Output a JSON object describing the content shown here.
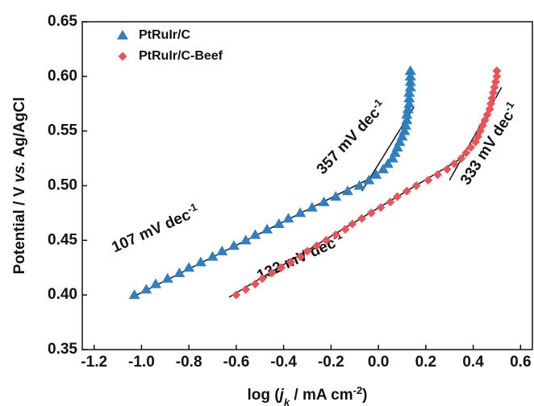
{
  "chart_data": {
    "type": "scatter",
    "x_label_parts": [
      "log (",
      "j",
      "k",
      " / mA cm",
      "-2",
      ")"
    ],
    "y_label_parts": [
      "Potential / V ",
      "vs.",
      " Ag/AgCl"
    ],
    "xlim": [
      -1.25,
      0.65
    ],
    "ylim": [
      0.35,
      0.65
    ],
    "xticks": [
      -1.2,
      {
        "value": -1.0,
        "label": "-1.0"
      },
      -0.8,
      -0.6,
      -0.4,
      -0.2,
      {
        "value": 0.0,
        "label": "0.0"
      },
      0.2,
      0.4,
      0.6
    ],
    "yticks": [
      0.35,
      {
        "value": 0.4,
        "label": "0.40"
      },
      0.45,
      {
        "value": 0.5,
        "label": "0.50"
      },
      0.55,
      {
        "value": 0.6,
        "label": "0.60"
      },
      0.65
    ],
    "legend_position": "upper left",
    "series": [
      {
        "name": "PtRuIr/C",
        "color": "#2f7fc1",
        "marker": "triangle",
        "x": [
          -1.03,
          -0.98,
          -0.94,
          -0.89,
          -0.84,
          -0.8,
          -0.75,
          -0.7,
          -0.66,
          -0.61,
          -0.56,
          -0.52,
          -0.47,
          -0.42,
          -0.38,
          -0.33,
          -0.28,
          -0.23,
          -0.18,
          -0.13,
          -0.08,
          -0.04,
          -0.01,
          0.02,
          0.04,
          0.06,
          0.07,
          0.08,
          0.09,
          0.1,
          0.11,
          0.115,
          0.12,
          0.12,
          0.125,
          0.13,
          0.13,
          0.13,
          0.135,
          0.135,
          0.135,
          0.135
        ],
        "values": [
          0.4,
          0.405,
          0.41,
          0.415,
          0.42,
          0.425,
          0.43,
          0.435,
          0.44,
          0.445,
          0.45,
          0.455,
          0.46,
          0.465,
          0.47,
          0.475,
          0.48,
          0.485,
          0.49,
          0.495,
          0.5,
          0.505,
          0.51,
          0.515,
          0.52,
          0.525,
          0.53,
          0.535,
          0.54,
          0.545,
          0.55,
          0.555,
          0.56,
          0.565,
          0.57,
          0.575,
          0.58,
          0.585,
          0.59,
          0.595,
          0.6,
          0.605
        ]
      },
      {
        "name": "PtRuIr/C-Beef",
        "color": "#e8545a",
        "marker": "diamond",
        "x": [
          -0.6,
          -0.56,
          -0.52,
          -0.49,
          -0.45,
          -0.41,
          -0.37,
          -0.33,
          -0.3,
          -0.26,
          -0.22,
          -0.18,
          -0.14,
          -0.11,
          -0.07,
          -0.03,
          0.01,
          0.05,
          0.08,
          0.12,
          0.16,
          0.21,
          0.25,
          0.29,
          0.32,
          0.35,
          0.37,
          0.39,
          0.41,
          0.42,
          0.43,
          0.44,
          0.45,
          0.46,
          0.47,
          0.475,
          0.48,
          0.485,
          0.49,
          0.495,
          0.5,
          0.5
        ],
        "values": [
          0.4,
          0.405,
          0.41,
          0.415,
          0.42,
          0.425,
          0.43,
          0.435,
          0.44,
          0.445,
          0.45,
          0.455,
          0.46,
          0.465,
          0.47,
          0.475,
          0.48,
          0.485,
          0.49,
          0.495,
          0.5,
          0.505,
          0.51,
          0.515,
          0.52,
          0.525,
          0.53,
          0.535,
          0.54,
          0.545,
          0.55,
          0.555,
          0.56,
          0.565,
          0.57,
          0.575,
          0.58,
          0.585,
          0.59,
          0.595,
          0.6,
          0.605
        ]
      }
    ],
    "fits": [
      {
        "text": "107 mV dec",
        "sup": "-1",
        "x": [
          -1.02,
          -0.05
        ],
        "y": [
          0.4,
          0.505
        ]
      },
      {
        "text": "357 mV dec",
        "sup": "-1",
        "x": [
          -0.07,
          0.15
        ],
        "y": [
          0.495,
          0.572
        ]
      },
      {
        "text": "132 mV dec",
        "sup": "-1",
        "x": [
          -0.63,
          0.35
        ],
        "y": [
          0.398,
          0.525
        ]
      },
      {
        "text": "333 mV dec",
        "sup": "-1",
        "x": [
          0.3,
          0.52
        ],
        "y": [
          0.505,
          0.59
        ]
      }
    ]
  }
}
